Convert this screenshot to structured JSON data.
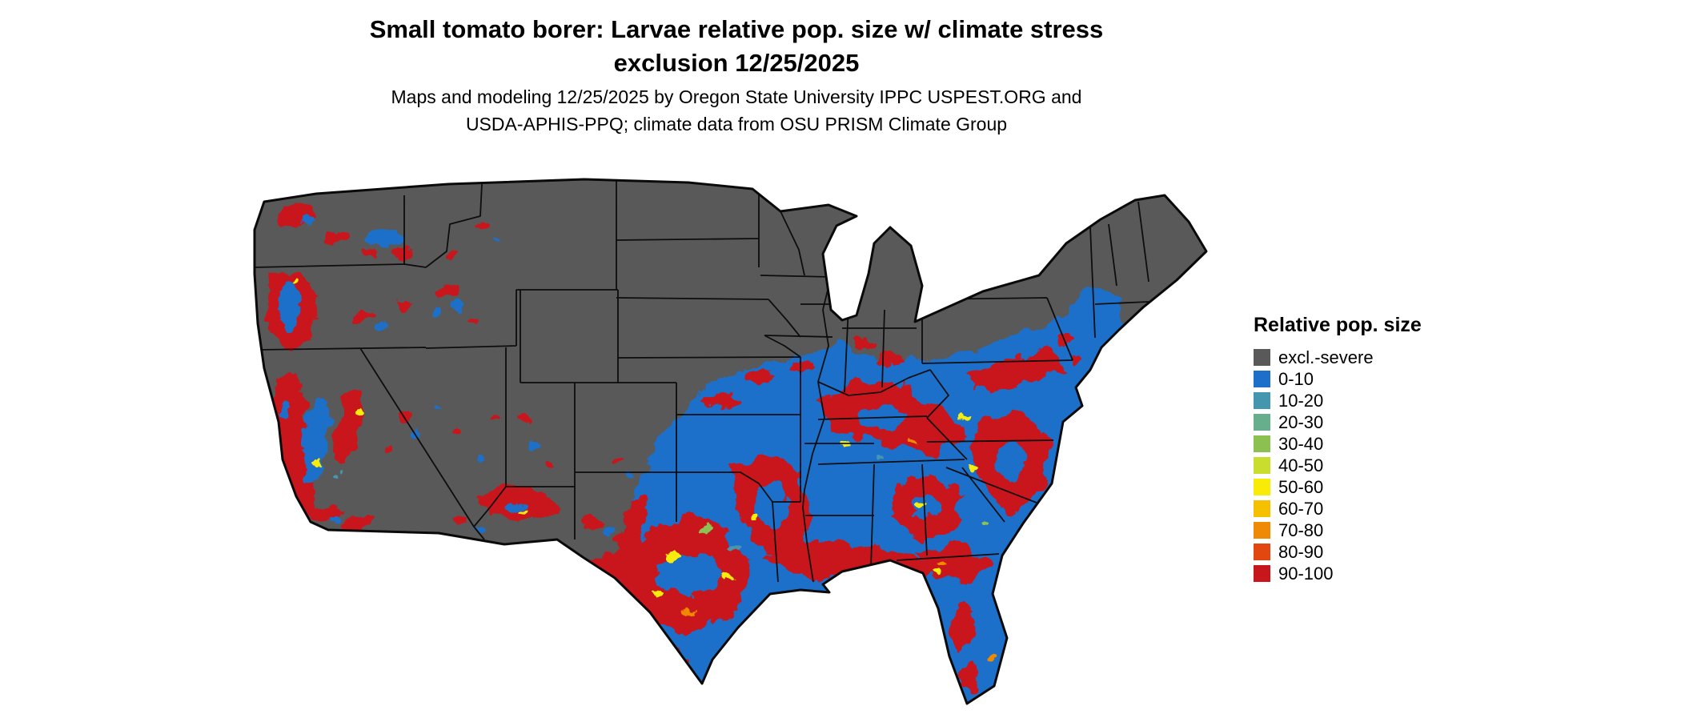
{
  "header": {
    "title_line1": "Small tomato borer: Larvae relative pop. size w/ climate stress",
    "title_line2": "exclusion 12/25/2025",
    "subtitle_line1": "Maps and modeling 12/25/2025 by Oregon State University IPPC USPEST.ORG and",
    "subtitle_line2": "USDA-APHIS-PPQ; climate data from OSU PRISM Climate Group"
  },
  "legend": {
    "title": "Relative pop. size",
    "items": [
      {
        "label": "excl.-severe",
        "color": "#595959"
      },
      {
        "label": "0-10",
        "color": "#1d6fc9"
      },
      {
        "label": "10-20",
        "color": "#4496ae"
      },
      {
        "label": "20-30",
        "color": "#67ae8c"
      },
      {
        "label": "30-40",
        "color": "#8cc152"
      },
      {
        "label": "40-50",
        "color": "#c8dd2e"
      },
      {
        "label": "50-60",
        "color": "#f8ec07"
      },
      {
        "label": "60-70",
        "color": "#f5c000"
      },
      {
        "label": "70-80",
        "color": "#ef8a06"
      },
      {
        "label": "80-90",
        "color": "#e2470f"
      },
      {
        "label": "90-100",
        "color": "#c8161d"
      }
    ]
  },
  "map": {
    "region_shown": "Contiguous United States",
    "base_color": "#595959",
    "low_color": "#1d6fc9",
    "high_color": "#c8161d",
    "accent_yellow": "#f8ec07",
    "border_color": "#0a0a0a",
    "background": "#ffffff"
  }
}
